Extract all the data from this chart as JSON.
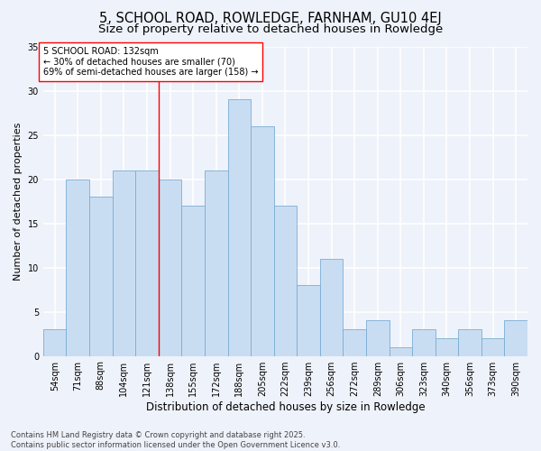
{
  "title": "5, SCHOOL ROAD, ROWLEDGE, FARNHAM, GU10 4EJ",
  "subtitle": "Size of property relative to detached houses in Rowledge",
  "xlabel": "Distribution of detached houses by size in Rowledge",
  "ylabel": "Number of detached properties",
  "categories": [
    "54sqm",
    "71sqm",
    "88sqm",
    "104sqm",
    "121sqm",
    "138sqm",
    "155sqm",
    "172sqm",
    "188sqm",
    "205sqm",
    "222sqm",
    "239sqm",
    "256sqm",
    "272sqm",
    "289sqm",
    "306sqm",
    "323sqm",
    "340sqm",
    "356sqm",
    "373sqm",
    "390sqm"
  ],
  "values": [
    3,
    20,
    18,
    21,
    21,
    20,
    17,
    21,
    29,
    26,
    17,
    8,
    11,
    3,
    4,
    1,
    3,
    2,
    3,
    2,
    4
  ],
  "bar_color": "#c9ddf2",
  "bar_edge_color": "#7badd4",
  "background_color": "#eef2fa",
  "grid_color": "#ffffff",
  "vline_x_index": 4.5,
  "vline_color": "red",
  "annotation_text": "5 SCHOOL ROAD: 132sqm\n← 30% of detached houses are smaller (70)\n69% of semi-detached houses are larger (158) →",
  "annotation_box_facecolor": "white",
  "annotation_box_edgecolor": "red",
  "ylim": [
    0,
    35
  ],
  "yticks": [
    0,
    5,
    10,
    15,
    20,
    25,
    30,
    35
  ],
  "footer": "Contains HM Land Registry data © Crown copyright and database right 2025.\nContains public sector information licensed under the Open Government Licence v3.0.",
  "title_fontsize": 10.5,
  "subtitle_fontsize": 9.5,
  "xlabel_fontsize": 8.5,
  "ylabel_fontsize": 8,
  "tick_fontsize": 7,
  "annotation_fontsize": 7,
  "footer_fontsize": 6
}
